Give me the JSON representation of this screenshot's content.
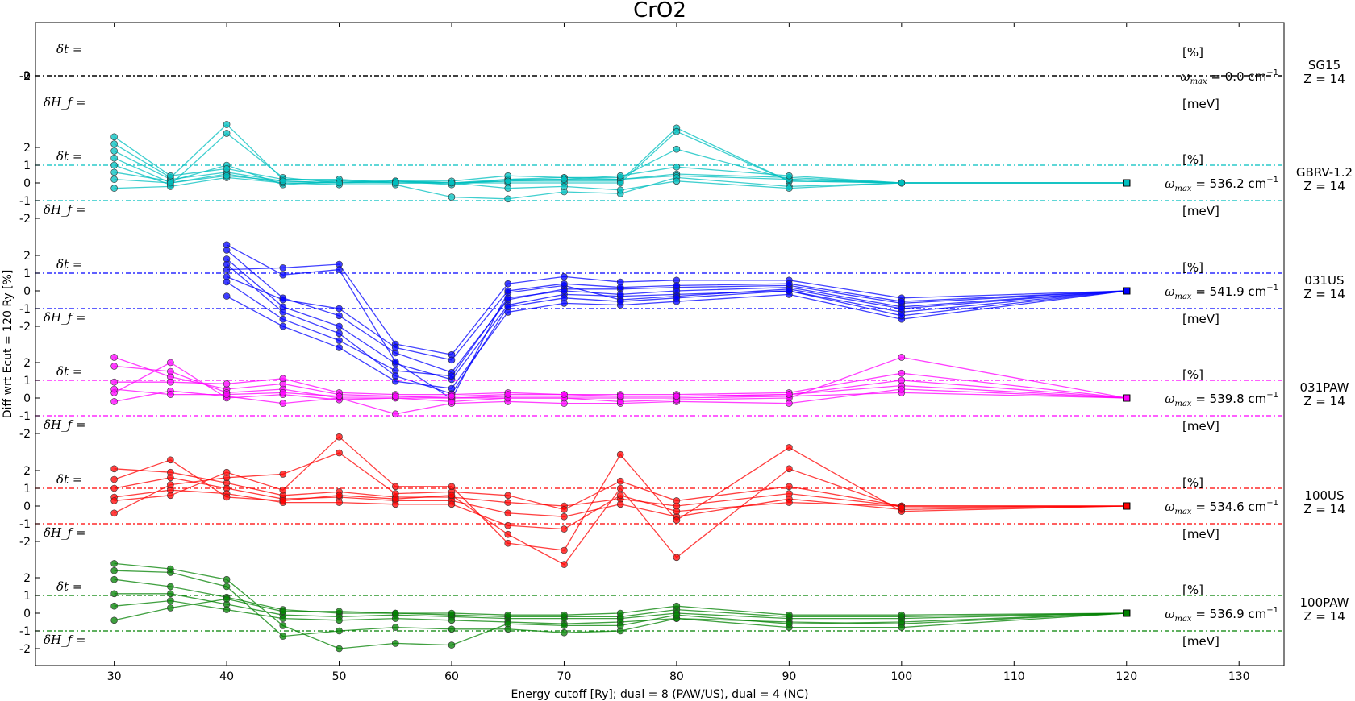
{
  "chart_data": {
    "type": "line",
    "title": "CrO2",
    "xlabel": "Energy cutoff [Ry]; dual = 8 (PAW/US), dual = 4 (NC)",
    "ylabel": "Diff wrt Ecut = 120 Ry [%]",
    "xlim": [
      23,
      134
    ],
    "xticks": [
      "30",
      "40",
      "50",
      "60",
      "70",
      "80",
      "90",
      "100",
      "110",
      "120",
      "130"
    ],
    "x": [
      30,
      35,
      40,
      45,
      50,
      55,
      60,
      65,
      70,
      75,
      80,
      90,
      100,
      120
    ],
    "band_yticks": [
      "2",
      "1",
      "0",
      "-1",
      "-2"
    ],
    "delta_t_label": "δt =",
    "delta_h_label": "δH_f =",
    "percent_unit": "[%]",
    "mev_unit": "[meV]",
    "omega_prefix": "ω",
    "omega_sub": "max",
    "omega_unit": "cm",
    "omega_exp": "−1",
    "grid": false,
    "series": [
      {
        "name": "SG15",
        "z_label": "Z = 14",
        "omega": "= 0.0",
        "color": "#000000",
        "lines": []
      },
      {
        "name": "GBRV-1.2",
        "z_label": "Z = 14",
        "omega": "= 536.2",
        "color": "#00BFBF",
        "lines": [
          [
            1.8,
            0.2,
            0.6,
            0.1,
            0.0,
            0.1,
            0.0,
            0.2,
            0.3,
            0.2,
            0.5,
            0.3,
            0.0,
            0.0
          ],
          [
            1.4,
            0.0,
            0.5,
            0.0,
            0.0,
            0.1,
            -0.1,
            0.2,
            0.2,
            0.2,
            0.4,
            0.2,
            0.0,
            0.0
          ],
          [
            2.2,
            0.3,
            3.3,
            0.2,
            0.1,
            0.0,
            0.0,
            0.1,
            0.1,
            0.1,
            3.1,
            0.1,
            0.0,
            0.0
          ],
          [
            1.0,
            -0.1,
            2.8,
            0.3,
            0.0,
            0.1,
            0.0,
            0.0,
            0.0,
            0.0,
            2.9,
            0.1,
            0.0,
            0.0
          ],
          [
            0.6,
            0.1,
            1.0,
            -0.1,
            0.1,
            0.1,
            0.1,
            0.4,
            0.3,
            0.3,
            1.9,
            0.2,
            0.0,
            0.0
          ],
          [
            -0.3,
            -0.2,
            0.3,
            0.0,
            -0.1,
            -0.1,
            -0.8,
            -0.9,
            -0.5,
            -0.6,
            0.3,
            -0.2,
            0.0,
            0.0
          ],
          [
            2.6,
            0.4,
            0.8,
            0.2,
            0.2,
            0.0,
            0.0,
            0.1,
            0.2,
            0.4,
            0.9,
            0.4,
            0.0,
            0.0
          ],
          [
            0.2,
            0.0,
            0.4,
            0.1,
            0.0,
            0.0,
            0.0,
            -0.3,
            -0.2,
            -0.4,
            0.1,
            -0.3,
            0.0,
            0.0
          ]
        ]
      },
      {
        "name": "031US",
        "z_label": "Z = 14",
        "omega": "= 541.9",
        "color": "#0000FF",
        "lines": [
          [
            null,
            null,
            2.3,
            -0.4,
            -1.4,
            -3.5,
            -4.6,
            -0.5,
            0.1,
            0.1,
            0.2,
            0.3,
            -0.7,
            0.0
          ],
          [
            null,
            null,
            1.8,
            -0.9,
            -2.0,
            -4.1,
            -5.0,
            -0.8,
            -0.2,
            -0.3,
            -0.2,
            0.0,
            -1.2,
            0.0
          ],
          [
            null,
            null,
            1.2,
            1.3,
            1.5,
            -3.0,
            -3.6,
            0.4,
            0.8,
            0.5,
            0.6,
            0.6,
            -0.4,
            0.0
          ],
          [
            null,
            null,
            0.5,
            -1.6,
            -2.8,
            -4.5,
            -4.8,
            -0.4,
            0.0,
            -0.2,
            0.0,
            0.2,
            -0.9,
            0.0
          ],
          [
            null,
            null,
            -0.3,
            -2.0,
            -3.2,
            -5.1,
            -5.5,
            -1.2,
            -0.7,
            -0.8,
            -0.6,
            -0.2,
            -1.6,
            0.0
          ],
          [
            null,
            null,
            2.6,
            0.9,
            1.2,
            -4.0,
            -6.1,
            -0.1,
            0.3,
            -0.5,
            -0.3,
            0.1,
            -1.0,
            0.0
          ],
          [
            null,
            null,
            1.5,
            -1.2,
            -2.4,
            -4.8,
            -5.8,
            -0.9,
            -0.4,
            -0.6,
            -0.4,
            0.0,
            -1.4,
            0.0
          ],
          [
            null,
            null,
            0.8,
            -0.5,
            -1.0,
            -3.2,
            -3.9,
            0.0,
            0.4,
            0.2,
            0.3,
            0.4,
            -0.6,
            0.0
          ]
        ]
      },
      {
        "name": "031PAW",
        "z_label": "Z = 14",
        "omega": "= 539.8",
        "color": "#FF00FF",
        "lines": [
          [
            2.3,
            1.2,
            0.5,
            0.8,
            0.2,
            0.1,
            0.0,
            0.1,
            0.1,
            0.1,
            0.1,
            0.2,
            0.7,
            0.0
          ],
          [
            1.8,
            1.5,
            0.3,
            0.5,
            0.0,
            0.0,
            0.0,
            0.0,
            0.0,
            0.0,
            0.0,
            0.1,
            0.3,
            0.0
          ],
          [
            0.9,
            0.9,
            0.8,
            1.1,
            0.3,
            0.2,
            0.2,
            0.3,
            0.2,
            0.2,
            0.2,
            0.3,
            1.4,
            0.0
          ],
          [
            -0.2,
            0.4,
            0.1,
            -0.3,
            0.0,
            -0.9,
            -0.3,
            -0.2,
            -0.3,
            -0.3,
            -0.2,
            -0.3,
            0.5,
            0.0
          ],
          [
            0.3,
            2.0,
            0.0,
            0.2,
            -0.1,
            0.0,
            -0.2,
            0.0,
            0.0,
            -0.2,
            -0.1,
            0.0,
            2.3,
            0.0
          ],
          [
            0.5,
            0.2,
            0.2,
            0.3,
            0.1,
            0.1,
            0.1,
            0.2,
            0.2,
            0.1,
            0.1,
            0.2,
            1.0,
            0.0
          ]
        ]
      },
      {
        "name": "100US",
        "z_label": "Z = 14",
        "omega": "= 534.6",
        "color": "#FF0000",
        "lines": [
          [
            2.1,
            1.9,
            1.3,
            0.6,
            0.8,
            0.5,
            0.5,
            0.2,
            0.0,
            0.4,
            0.0,
            0.7,
            0.0,
            0.0
          ],
          [
            1.0,
            1.6,
            1.0,
            0.4,
            0.5,
            0.3,
            0.3,
            -0.4,
            -0.6,
            0.1,
            -0.6,
            0.4,
            -0.2,
            0.0
          ],
          [
            0.5,
            0.9,
            0.7,
            0.2,
            0.2,
            0.1,
            0.1,
            -1.1,
            -1.3,
            0.6,
            -0.3,
            0.2,
            0.0,
            0.0
          ],
          [
            -0.4,
            1.2,
            1.6,
            1.8,
            3.0,
            0.7,
            0.8,
            0.6,
            -0.2,
            1.4,
            0.3,
            1.1,
            0.0,
            0.0
          ],
          [
            0.3,
            0.6,
            1.9,
            0.9,
            3.9,
            1.1,
            1.1,
            -2.1,
            -2.5,
            2.9,
            -0.8,
            3.3,
            -0.3,
            0.0
          ],
          [
            1.5,
            2.6,
            0.5,
            0.3,
            0.6,
            0.4,
            0.6,
            -1.6,
            -3.3,
            1.0,
            -2.9,
            2.1,
            -0.1,
            0.0
          ]
        ]
      },
      {
        "name": "100PAW",
        "z_label": "Z = 14",
        "omega": "= 536.9",
        "color": "#008000",
        "lines": [
          [
            1.9,
            1.5,
            0.9,
            0.2,
            0.0,
            0.0,
            -0.1,
            -0.2,
            -0.2,
            -0.2,
            0.2,
            -0.2,
            -0.2,
            0.0
          ],
          [
            1.1,
            1.1,
            0.5,
            -0.1,
            -0.2,
            -0.1,
            -0.2,
            -0.3,
            -0.3,
            -0.3,
            0.0,
            -0.3,
            -0.3,
            0.0
          ],
          [
            0.4,
            0.7,
            0.2,
            -0.3,
            -0.4,
            -0.3,
            -0.4,
            -0.5,
            -0.6,
            -0.5,
            -0.3,
            -0.5,
            -0.6,
            0.0
          ],
          [
            2.4,
            2.3,
            1.5,
            -1.3,
            -1.0,
            -0.8,
            -0.9,
            -0.9,
            -1.1,
            -1.0,
            -0.3,
            -0.8,
            -0.8,
            0.0
          ],
          [
            -0.4,
            0.3,
            0.8,
            0.1,
            0.1,
            0.0,
            0.0,
            -0.1,
            -0.1,
            0.0,
            0.4,
            -0.1,
            -0.1,
            0.0
          ],
          [
            2.8,
            2.5,
            1.9,
            -0.7,
            -2.0,
            -1.7,
            -1.8,
            -0.6,
            -0.7,
            -0.7,
            -0.1,
            -0.6,
            -0.5,
            0.0
          ]
        ]
      }
    ]
  }
}
